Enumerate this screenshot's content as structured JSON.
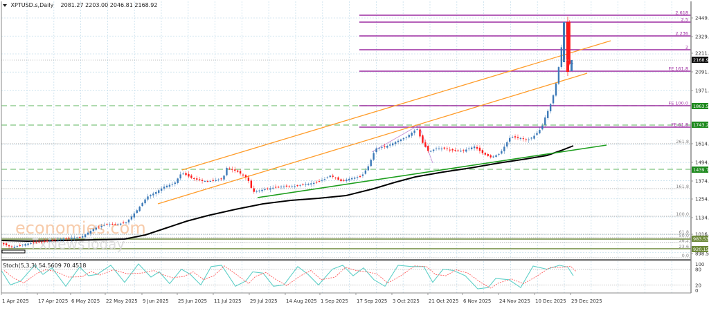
{
  "header": {
    "symbol": "XPTUSD.s,Daily",
    "ohlc": "2081.27 2203.00 2046.81 2168.92"
  },
  "watermark": {
    "line1": "economies.com",
    "line2": "FxNewsToday"
  },
  "colors": {
    "bull": "#3d7ab8",
    "bear": "#ff1a1a",
    "channel": "#ff9c2a",
    "trendline": "#1e9e1e",
    "ma": "#000000",
    "fib_ext": "#9c2aa0",
    "support_dash": "#7dc47d",
    "level_box": "#1e8a1e",
    "olive_level": "#6e8a3a",
    "stoch_main": "#5fd0c8",
    "stoch_signal": "#ff6a6a",
    "grid": "#c8e0ec",
    "axis": "#888888"
  },
  "price_axis": {
    "labels": [
      "2449.30",
      "2329.30",
      "2211.70",
      "2091.70",
      "1971.70",
      "1614.10",
      "1494.10",
      "1374.10",
      "1254.10",
      "1134.10",
      "1016.50",
      "898.50"
    ],
    "current_price": "2168.92",
    "boxed_levels": [
      {
        "label": "1863.50",
        "color": "#1e8a1e"
      },
      {
        "label": "1743.26",
        "color": "#1e8a1e"
      },
      {
        "label": "1439.72",
        "color": "#1e8a1e"
      },
      {
        "label": "983.53",
        "color": "#6e8a3a"
      },
      {
        "label": "920.15",
        "color": "#6e8a3a"
      }
    ]
  },
  "fib_extension_labels": [
    "2.618",
    "2.5",
    "2.236",
    "2",
    "FE 161.8",
    "FE 100.0",
    "FE 61.8"
  ],
  "fib_retracement_labels": [
    "261.8",
    "161.8",
    "100.0",
    "61.8",
    "50.0",
    "38.2",
    "23.6",
    "0.0"
  ],
  "stoch": {
    "label": "Stoch(5,3,3) 54.5609 70.4518",
    "axis_labels": [
      "100",
      "80",
      "20",
      "0"
    ]
  },
  "time_axis": {
    "labels": [
      "1 Apr 2025",
      "17 Apr 2025",
      "6 May 2025",
      "22 May 2025",
      "9 Jun 2025",
      "25 Jun 2025",
      "11 Jul 2025",
      "29 Jul 2025",
      "14 Aug 2025",
      "1 Sep 2025",
      "17 Sep 2025",
      "3 Oct 2025",
      "21 Oct 2025",
      "6 Nov 2025",
      "24 Nov 2025",
      "10 Dec 2025",
      "29 Dec 2025"
    ]
  },
  "chart_data": {
    "type": "candlestick",
    "title": "XPTUSD.s, Daily",
    "last_bar": {
      "open": 2081.27,
      "high": 2203.0,
      "low": 2046.81,
      "close": 2168.92
    },
    "x_ticks": [
      "1 Apr 2025",
      "17 Apr 2025",
      "6 May 2025",
      "22 May 2025",
      "9 Jun 2025",
      "25 Jun 2025",
      "11 Jul 2025",
      "29 Jul 2025",
      "14 Aug 2025",
      "1 Sep 2025",
      "17 Sep 2025",
      "3 Oct 2025",
      "21 Oct 2025",
      "6 Nov 2025",
      "24 Nov 2025",
      "10 Dec 2025",
      "29 Dec 2025"
    ],
    "y_ticks": [
      898.5,
      1016.5,
      1134.1,
      1254.1,
      1374.1,
      1494.1,
      1614.1,
      1971.7,
      2091.7,
      2211.7,
      2329.3,
      2449.3
    ],
    "ylim": [
      880,
      2500
    ],
    "approx_closes_by_month": [
      {
        "date": "1 Apr 2025",
        "close": 960
      },
      {
        "date": "17 Apr 2025",
        "close": 955
      },
      {
        "date": "6 May 2025",
        "close": 985
      },
      {
        "date": "22 May 2025",
        "close": 1060
      },
      {
        "date": "9 Jun 2025",
        "close": 1250
      },
      {
        "date": "25 Jun 2025",
        "close": 1370
      },
      {
        "date": "11 Jul 2025",
        "close": 1420
      },
      {
        "date": "29 Jul 2025",
        "close": 1310
      },
      {
        "date": "14 Aug 2025",
        "close": 1340
      },
      {
        "date": "1 Sep 2025",
        "close": 1380
      },
      {
        "date": "17 Sep 2025",
        "close": 1540
      },
      {
        "date": "3 Oct 2025",
        "close": 1660
      },
      {
        "date": "21 Oct 2025",
        "close": 1550
      },
      {
        "date": "6 Nov 2025",
        "close": 1560
      },
      {
        "date": "24 Nov 2025",
        "close": 1600
      },
      {
        "date": "10 Dec 2025",
        "close": 1760
      },
      {
        "date": "29 Dec 2025",
        "close": 2168.92
      }
    ],
    "peak": {
      "date": "~26 Dec 2025",
      "high": 2480
    },
    "horizontal_levels": [
      {
        "label": "FE 2.618",
        "value": 2480
      },
      {
        "label": "FE 2.5",
        "value": 2440
      },
      {
        "label": "FE 2.236",
        "value": 2355
      },
      {
        "label": "FE 2",
        "value": 2230
      },
      {
        "label": "FE 161.8",
        "value": 2095
      },
      {
        "label": "FE 100.0",
        "value": 1863.5
      },
      {
        "label": "FE 61.8",
        "value": 1743.26
      },
      {
        "label": "support",
        "value": 1439.72
      },
      {
        "label": "support",
        "value": 983.53
      },
      {
        "label": "support",
        "value": 920.15
      }
    ],
    "fib_retracement": {
      "261.8": 1614,
      "161.8": 1340,
      "100.0": 1160,
      "61.8": 1040,
      "50.0": 1005,
      "38.2": 975,
      "23.6": 930,
      "0.0": 880
    },
    "indicators": [
      {
        "name": "Moving Average",
        "color": "black"
      },
      {
        "name": "Ascending channel",
        "color": "orange"
      },
      {
        "name": "Ascending trendline",
        "color": "green"
      },
      {
        "name": "Stochastic(5,3,3)",
        "main": 54.5609,
        "signal": 70.4518,
        "levels": [
          20,
          80
        ]
      }
    ]
  }
}
